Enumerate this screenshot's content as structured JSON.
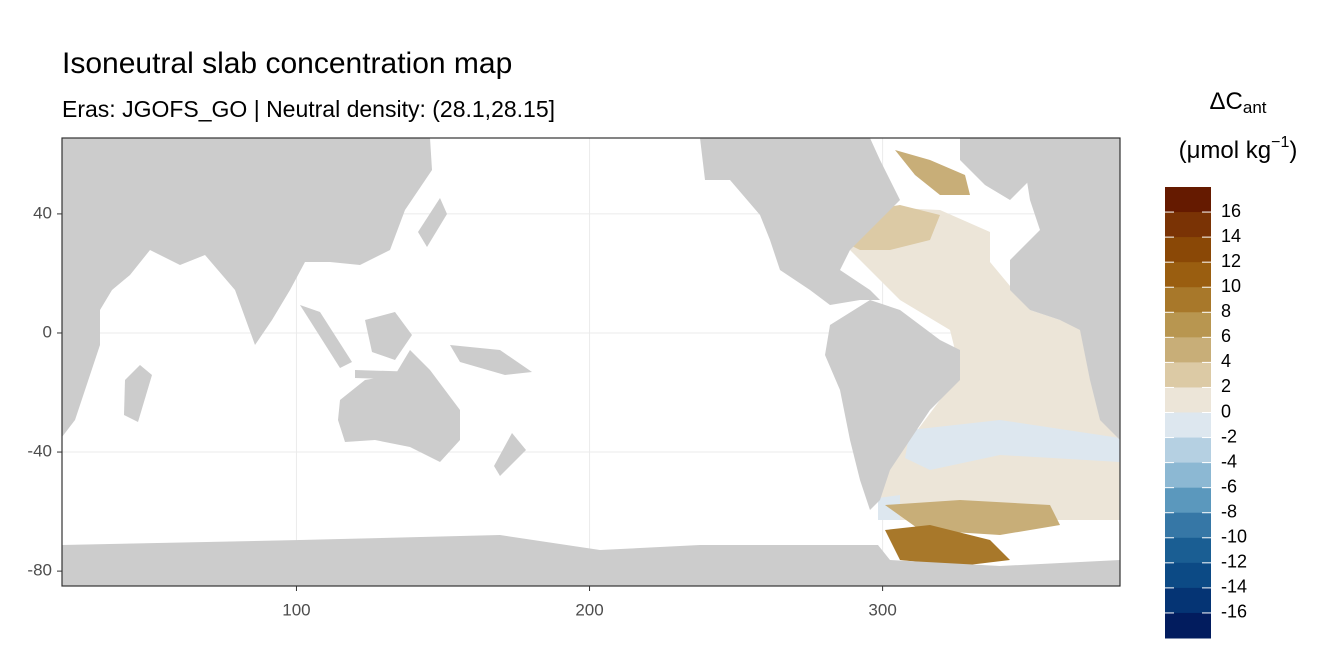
{
  "chart_data": {
    "type": "map",
    "title": "Isoneutral slab concentration map",
    "subtitle": "Eras: JGOFS_GO | Neutral density: (28.1,28.15]",
    "xlim": [
      20,
      381
    ],
    "xticks": [
      100,
      200,
      300
    ],
    "ylim": [
      -85,
      65.5
    ],
    "yticks": [
      40,
      0,
      -40,
      -80
    ],
    "grid": true,
    "land_color": "#cccccc",
    "legend": {
      "title_line1": [
        "ΔC",
        "ant"
      ],
      "title_line2": [
        "(μmol kg",
        "−1",
        ")"
      ],
      "breaks": [
        16,
        14,
        12,
        10,
        8,
        6,
        4,
        2,
        0,
        -2,
        -4,
        -6,
        -8,
        -10,
        -12,
        -14,
        -16
      ],
      "colors": [
        "#651a00",
        "#7a3305",
        "#8a4806",
        "#9a5e10",
        "#a8782a",
        "#b89650",
        "#c8ae78",
        "#dccaa5",
        "#ece5d8",
        "#dde7ef",
        "#b5d0e2",
        "#8cb8d3",
        "#5b98bd",
        "#3677a6",
        "#1a5e93",
        "#0c4a85",
        "#053474",
        "#021c5e"
      ]
    }
  }
}
